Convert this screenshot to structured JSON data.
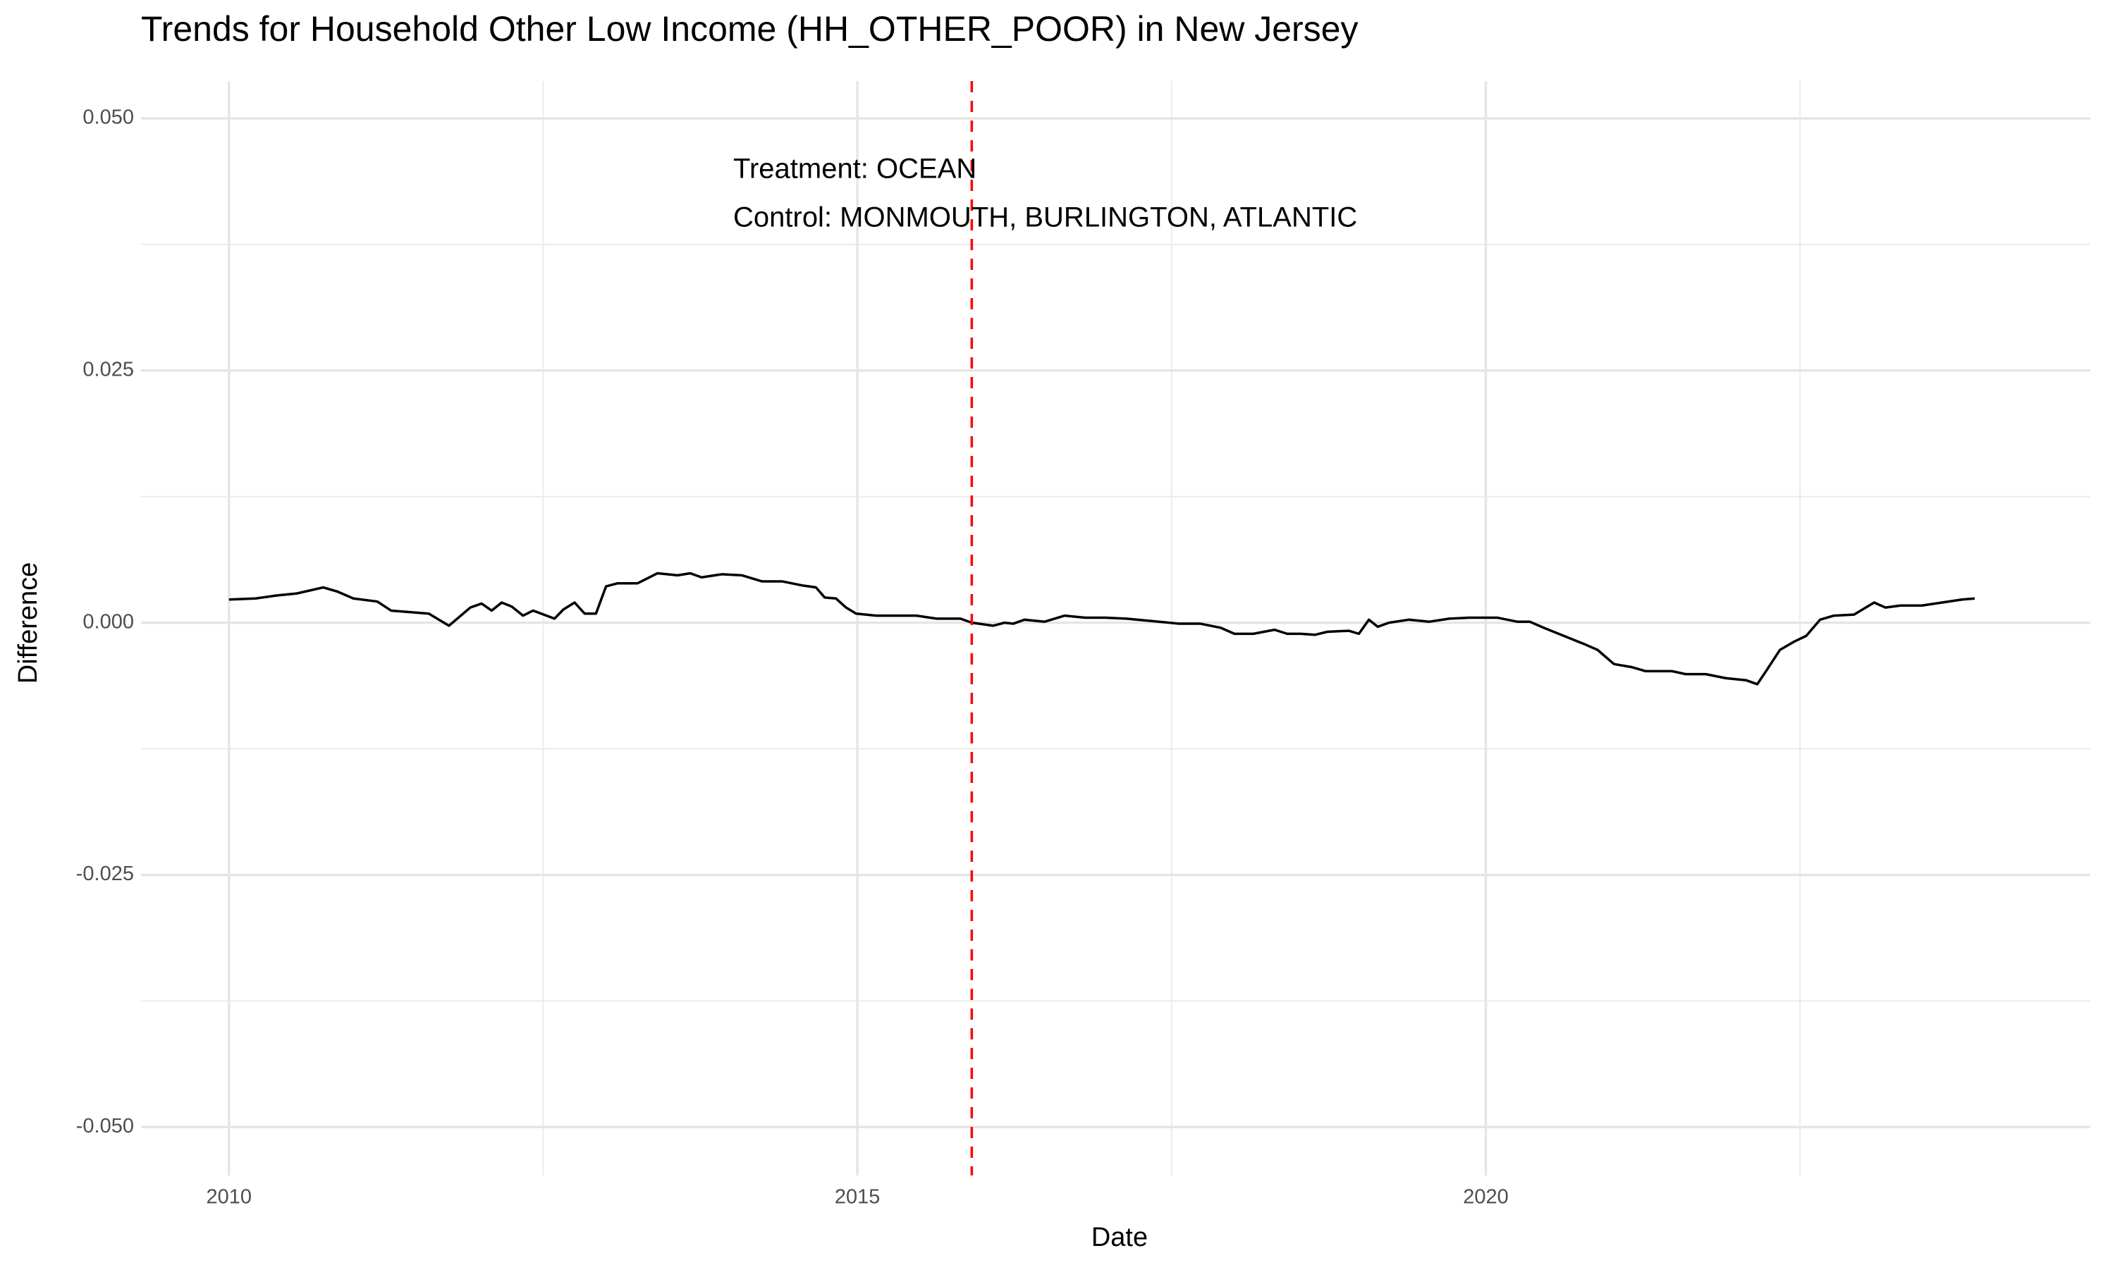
{
  "chart_data": {
    "type": "line",
    "title": "Trends for Household Other Low Income (HH_OTHER_POOR) in New Jersey",
    "x_label": "Date",
    "y_label": "Difference",
    "annotations": [
      "Treatment: OCEAN",
      "Control: MONMOUTH, BURLINGTON, ATLANTIC"
    ],
    "xlim": [
      2009.3,
      2024.81
    ],
    "ylim": [
      -0.0548,
      0.0537
    ],
    "xticks": [
      2010,
      2015,
      2020
    ],
    "yticks": [
      {
        "value": 0.05,
        "label": "0.050"
      },
      {
        "value": 0.025,
        "label": "0.025"
      },
      {
        "value": 0,
        "label": "0.000"
      },
      {
        "value": -0.025,
        "label": "-0.025"
      },
      {
        "value": -0.05,
        "label": "-0.050"
      }
    ],
    "xminor": [
      2012.5,
      2017.5,
      2022.5
    ],
    "yminor": [
      0.0375,
      0.0125,
      -0.0125,
      -0.0375
    ],
    "grid": true,
    "vline": {
      "x": 2015.91,
      "color": "#ff0000",
      "linetype": "dashed"
    },
    "x": [
      2010.0,
      2010.21,
      2010.38,
      2010.54,
      2010.75,
      2010.86,
      2010.99,
      2011.18,
      2011.29,
      2011.59,
      2011.75,
      2011.92,
      2012.01,
      2012.09,
      2012.17,
      2012.25,
      2012.34,
      2012.42,
      2012.59,
      2012.66,
      2012.75,
      2012.83,
      2012.92,
      2013.0,
      2013.09,
      2013.25,
      2013.41,
      2013.57,
      2013.67,
      2013.76,
      2013.92,
      2014.08,
      2014.24,
      2014.4,
      2014.56,
      2014.67,
      2014.74,
      2014.83,
      2014.91,
      2014.99,
      2015.15,
      2015.31,
      2015.47,
      2015.63,
      2015.82,
      2015.91,
      2016.08,
      2016.17,
      2016.24,
      2016.33,
      2016.49,
      2016.65,
      2016.81,
      2016.97,
      2017.14,
      2017.4,
      2017.56,
      2017.73,
      2017.89,
      2018.0,
      2018.15,
      2018.32,
      2018.42,
      2018.53,
      2018.64,
      2018.74,
      2018.91,
      2018.99,
      2019.07,
      2019.14,
      2019.23,
      2019.39,
      2019.55,
      2019.71,
      2019.87,
      2020.09,
      2020.25,
      2020.35,
      2020.46,
      2020.62,
      2020.78,
      2020.89,
      2021.02,
      2021.16,
      2021.27,
      2021.48,
      2021.59,
      2021.75,
      2021.91,
      2022.07,
      2022.16,
      2022.23,
      2022.34,
      2022.45,
      2022.55,
      2022.66,
      2022.77,
      2022.93,
      2023.09,
      2023.18,
      2023.3,
      2023.47,
      2023.63,
      2023.79,
      2023.89
    ],
    "series": [
      {
        "color": "#000000",
        "values": [
          0.0023,
          0.0024,
          0.0027,
          0.0029,
          0.0035,
          0.0031,
          0.0024,
          0.0021,
          0.0012,
          0.0009,
          -0.0003,
          0.0015,
          0.0019,
          0.0012,
          0.002,
          0.0016,
          0.0007,
          0.0012,
          0.0004,
          0.0013,
          0.002,
          0.0009,
          0.0009,
          0.0036,
          0.0039,
          0.0039,
          0.0049,
          0.0047,
          0.0049,
          0.0045,
          0.0048,
          0.0047,
          0.0041,
          0.0041,
          0.0037,
          0.0035,
          0.0025,
          0.0024,
          0.0015,
          0.0009,
          0.0007,
          0.0007,
          0.0007,
          0.0004,
          0.0004,
          0.0,
          -0.0003,
          0.0,
          -0.0001,
          0.0003,
          0.0001,
          0.0007,
          0.0005,
          0.0005,
          0.0004,
          0.0001,
          -0.0001,
          -0.0001,
          -0.0005,
          -0.0011,
          -0.0011,
          -0.0007,
          -0.0011,
          -0.0011,
          -0.0012,
          -0.0009,
          -0.0008,
          -0.0011,
          0.0003,
          -0.0004,
          0.0,
          0.0003,
          0.0001,
          0.0004,
          0.0005,
          0.0005,
          0.0001,
          0.0001,
          -0.0005,
          -0.0013,
          -0.0021,
          -0.0027,
          -0.0041,
          -0.0044,
          -0.0048,
          -0.0048,
          -0.0051,
          -0.0051,
          -0.0055,
          -0.0057,
          -0.0061,
          -0.0048,
          -0.0027,
          -0.0019,
          -0.0013,
          0.0003,
          0.0007,
          0.0008,
          0.002,
          0.0015,
          0.0017,
          0.0017,
          0.002,
          0.0023,
          0.0024
        ]
      }
    ]
  }
}
